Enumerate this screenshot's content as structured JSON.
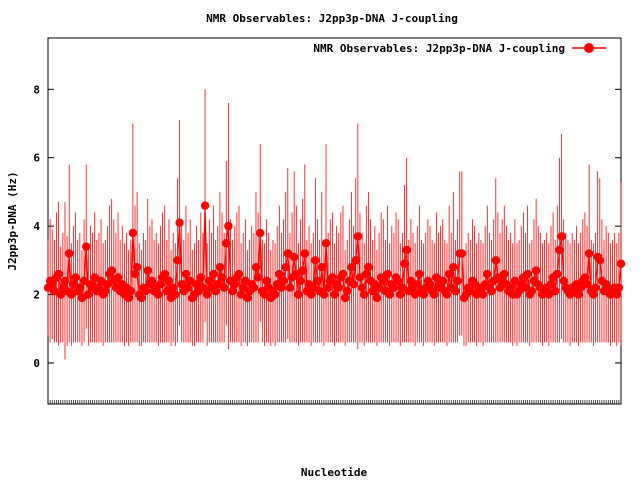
{
  "chart_data": {
    "type": "scatter",
    "title": "NMR Observables: J2pp3p-DNA J-coupling",
    "xlabel": "Nucleotide",
    "ylabel": "J2pp3p-DNA (Hz)",
    "ylim": [
      -1.2,
      9.5
    ],
    "yticks": [
      0,
      2,
      4,
      6,
      8
    ],
    "grid": false,
    "legend_position": "top-right",
    "series": [
      {
        "name": "NMR Observables: J2pp3p-DNA J-coupling",
        "color": "#ff0000",
        "marker": "circle",
        "error_bars": true,
        "y": [
          2.2,
          2.4,
          2.3,
          2.1,
          2.5,
          2.6,
          2.0,
          2.2,
          2.4,
          2.1,
          3.2,
          2.0,
          2.3,
          2.5,
          2.1,
          2.2,
          1.9,
          2.4,
          3.4,
          2.0,
          2.3,
          2.2,
          2.5,
          2.1,
          2.2,
          2.4,
          2.0,
          2.1,
          2.3,
          2.6,
          2.7,
          2.4,
          2.2,
          2.5,
          2.1,
          2.3,
          2.0,
          2.2,
          1.9,
          2.1,
          3.8,
          2.6,
          2.8,
          2.0,
          1.9,
          2.2,
          2.1,
          2.7,
          2.3,
          2.4,
          2.1,
          2.2,
          2.0,
          2.3,
          2.5,
          2.6,
          2.1,
          2.4,
          1.9,
          2.2,
          2.0,
          3.0,
          4.1,
          2.3,
          2.1,
          2.6,
          2.2,
          2.4,
          1.9,
          2.0,
          2.3,
          2.1,
          2.5,
          2.2,
          4.6,
          2.0,
          2.4,
          2.2,
          2.6,
          2.1,
          2.3,
          2.8,
          2.5,
          2.2,
          3.5,
          4.0,
          2.4,
          2.1,
          2.3,
          2.5,
          2.6,
          2.0,
          2.2,
          2.4,
          1.9,
          2.1,
          2.3,
          2.2,
          2.8,
          2.5,
          3.8,
          2.1,
          2.0,
          2.4,
          2.2,
          1.9,
          2.1,
          2.0,
          2.3,
          2.6,
          2.2,
          2.4,
          2.8,
          3.2,
          2.2,
          2.5,
          3.1,
          2.6,
          2.0,
          2.4,
          2.7,
          3.2,
          2.1,
          2.3,
          2.0,
          2.2,
          3.0,
          2.4,
          2.1,
          2.8,
          2.0,
          3.5,
          2.2,
          2.4,
          2.5,
          2.0,
          2.3,
          2.2,
          2.5,
          2.6,
          1.9,
          2.1,
          2.4,
          2.8,
          2.3,
          3.0,
          3.7,
          2.5,
          2.2,
          2.0,
          2.6,
          2.8,
          2.4,
          2.1,
          2.3,
          1.9,
          2.2,
          2.5,
          2.4,
          2.1,
          2.6,
          2.0,
          2.3,
          2.2,
          2.5,
          2.4,
          2.0,
          2.2,
          2.9,
          3.3,
          2.1,
          2.4,
          2.2,
          2.0,
          2.3,
          2.6,
          2.1,
          2.0,
          2.2,
          2.4,
          2.3,
          2.1,
          2.0,
          2.5,
          2.2,
          2.3,
          2.4,
          2.1,
          2.0,
          2.6,
          2.2,
          2.8,
          2.1,
          2.4,
          3.2,
          3.2,
          1.9,
          2.0,
          2.2,
          2.1,
          2.4,
          2.3,
          2.0,
          2.2,
          2.1,
          2.0,
          2.3,
          2.6,
          2.2,
          2.1,
          2.4,
          3.0,
          2.5,
          2.2,
          2.4,
          2.6,
          2.3,
          2.1,
          2.2,
          2.0,
          2.4,
          2.0,
          2.1,
          2.3,
          2.5,
          2.2,
          2.6,
          2.0,
          2.1,
          2.4,
          2.7,
          2.3,
          2.2,
          2.0,
          2.1,
          2.2,
          2.0,
          2.3,
          2.5,
          2.1,
          2.6,
          3.3,
          3.7,
          2.4,
          2.2,
          2.1,
          2.0,
          2.2,
          2.1,
          2.3,
          2.0,
          2.2,
          2.4,
          2.5,
          2.3,
          3.2,
          2.1,
          2.0,
          2.2,
          3.1,
          3.0,
          2.4,
          2.1,
          2.3,
          2.2,
          2.0,
          2.1,
          2.2,
          2.0,
          2.2,
          2.9
        ],
        "yerr": [
          1.4,
          1.8,
          1.6,
          1.5,
          1.9,
          2.1,
          1.4,
          1.6,
          2.3,
          1.6,
          2.6,
          1.5,
          1.7,
          1.9,
          1.5,
          1.6,
          1.4,
          1.8,
          2.4,
          1.5,
          1.7,
          1.6,
          1.9,
          1.5,
          1.6,
          1.8,
          1.5,
          1.5,
          1.7,
          2.0,
          2.1,
          1.8,
          1.6,
          1.9,
          1.5,
          1.7,
          1.5,
          1.6,
          1.4,
          1.5,
          3.2,
          2.0,
          2.2,
          1.5,
          1.4,
          1.6,
          1.5,
          2.1,
          1.7,
          1.8,
          1.5,
          1.6,
          1.5,
          1.7,
          1.9,
          2.0,
          1.5,
          1.8,
          1.4,
          1.6,
          1.5,
          2.4,
          3.0,
          1.7,
          1.5,
          2.0,
          1.6,
          1.8,
          1.4,
          1.5,
          1.7,
          1.5,
          1.9,
          1.6,
          3.4,
          1.5,
          1.8,
          1.6,
          2.0,
          1.5,
          1.7,
          2.2,
          1.9,
          1.6,
          2.4,
          3.6,
          1.8,
          1.5,
          1.7,
          1.9,
          2.0,
          1.5,
          1.6,
          1.8,
          1.4,
          1.5,
          1.7,
          1.6,
          2.2,
          1.9,
          2.6,
          1.5,
          1.5,
          1.8,
          1.6,
          1.4,
          1.5,
          1.5,
          1.7,
          2.0,
          1.6,
          1.8,
          2.2,
          2.5,
          1.6,
          1.9,
          2.5,
          2.0,
          1.5,
          1.8,
          2.1,
          2.6,
          1.5,
          1.7,
          1.5,
          1.6,
          2.4,
          1.8,
          1.5,
          2.2,
          1.5,
          2.9,
          1.6,
          1.8,
          1.9,
          1.5,
          1.7,
          1.6,
          1.9,
          2.0,
          1.4,
          1.5,
          1.8,
          2.2,
          1.7,
          2.4,
          3.3,
          1.9,
          1.6,
          1.5,
          2.0,
          2.2,
          1.8,
          1.5,
          1.7,
          1.4,
          1.6,
          1.9,
          1.8,
          1.5,
          2.0,
          1.5,
          1.7,
          1.6,
          1.9,
          1.8,
          1.5,
          1.6,
          2.3,
          2.7,
          1.5,
          1.8,
          1.6,
          1.5,
          1.7,
          2.0,
          1.5,
          1.5,
          1.6,
          1.8,
          1.7,
          1.5,
          1.5,
          1.9,
          1.6,
          1.7,
          1.8,
          1.5,
          1.5,
          2.0,
          1.6,
          2.2,
          1.5,
          1.8,
          2.4,
          2.4,
          1.4,
          1.5,
          1.6,
          1.5,
          1.8,
          1.7,
          1.5,
          1.6,
          1.5,
          1.5,
          1.7,
          2.0,
          1.6,
          1.5,
          1.8,
          2.4,
          1.9,
          1.6,
          1.8,
          2.0,
          1.7,
          1.5,
          1.6,
          1.5,
          1.8,
          1.5,
          1.5,
          1.7,
          1.9,
          1.6,
          2.0,
          1.5,
          1.5,
          1.8,
          2.1,
          1.7,
          1.6,
          1.5,
          1.5,
          1.6,
          1.5,
          1.7,
          1.9,
          1.5,
          2.0,
          2.7,
          3.0,
          1.8,
          1.6,
          1.5,
          1.5,
          1.6,
          1.5,
          1.7,
          1.5,
          1.6,
          1.8,
          1.9,
          1.7,
          2.6,
          1.5,
          1.5,
          1.6,
          2.5,
          2.4,
          1.8,
          1.5,
          1.7,
          1.6,
          1.5,
          1.5,
          1.6,
          1.5,
          1.6,
          2.4
        ]
      }
    ]
  }
}
